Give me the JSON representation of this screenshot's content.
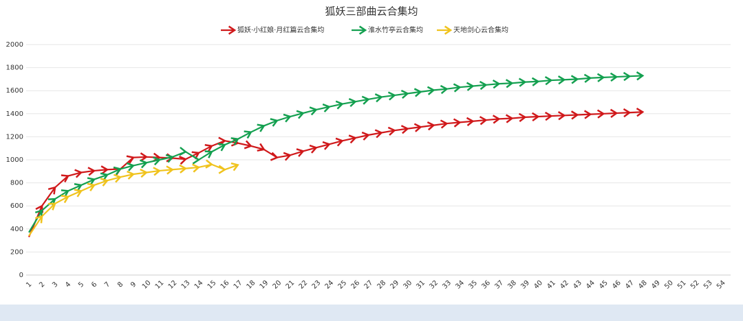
{
  "chart_data": {
    "type": "line",
    "title": "狐妖三部曲云合集均",
    "categories": [
      "1",
      "2",
      "3",
      "4",
      "5",
      "6",
      "7",
      "8",
      "9",
      "10",
      "11",
      "12",
      "13",
      "14",
      "15",
      "16",
      "17",
      "18",
      "19",
      "20",
      "21",
      "22",
      "23",
      "24",
      "25",
      "26",
      "27",
      "28",
      "29",
      "30",
      "31",
      "32",
      "33",
      "34",
      "35",
      "36",
      "37",
      "38",
      "39",
      "40",
      "41",
      "42",
      "43",
      "44",
      "45",
      "46",
      "47",
      "48",
      "49",
      "50",
      "51",
      "52",
      "53",
      "54"
    ],
    "series": [
      {
        "name": "狐妖·小红娘·月红篇云合集均",
        "color": "#d0191b",
        "values": [
          330,
          600,
          760,
          860,
          890,
          905,
          915,
          920,
          1020,
          1025,
          1020,
          1015,
          1005,
          1060,
          1120,
          1165,
          1145,
          1120,
          1090,
          1020,
          1040,
          1075,
          1105,
          1135,
          1165,
          1190,
          1215,
          1235,
          1255,
          1270,
          1285,
          1300,
          1315,
          1325,
          1335,
          1345,
          1355,
          1360,
          1370,
          1375,
          1380,
          1385,
          1390,
          1395,
          1400,
          1405,
          1410,
          1415,
          null,
          null,
          null,
          null,
          null,
          null
        ]
      },
      {
        "name": "淮水竹亭云合集均",
        "color": "#14a050",
        "values": [
          370,
          560,
          660,
          730,
          780,
          830,
          870,
          920,
          950,
          975,
          1000,
          1025,
          1070,
          1000,
          1070,
          1130,
          1180,
          1240,
          1295,
          1340,
          1375,
          1405,
          1435,
          1460,
          1485,
          1505,
          1525,
          1545,
          1560,
          1575,
          1590,
          1605,
          1615,
          1630,
          1640,
          1650,
          1660,
          1665,
          1675,
          1680,
          1690,
          1695,
          1700,
          1710,
          1715,
          1720,
          1725,
          1730,
          null,
          null,
          null,
          null,
          null,
          null
        ]
      },
      {
        "name": "天地剑心云合集均",
        "color": "#f0c31e",
        "values": [
          340,
          510,
          620,
          680,
          730,
          780,
          820,
          850,
          875,
          890,
          905,
          915,
          925,
          935,
          960,
          915,
          955,
          null,
          null,
          null,
          null,
          null,
          null,
          null,
          null,
          null,
          null,
          null,
          null,
          null,
          null,
          null,
          null,
          null,
          null,
          null,
          null,
          null,
          null,
          null,
          null,
          null,
          null,
          null,
          null,
          null,
          null,
          null,
          null,
          null,
          null,
          null,
          null,
          null
        ]
      }
    ],
    "ylim": [
      0,
      2000
    ],
    "yticks": [
      0,
      200,
      400,
      600,
      800,
      1000,
      1200,
      1400,
      1600,
      1800,
      2000
    ],
    "grid": true
  }
}
